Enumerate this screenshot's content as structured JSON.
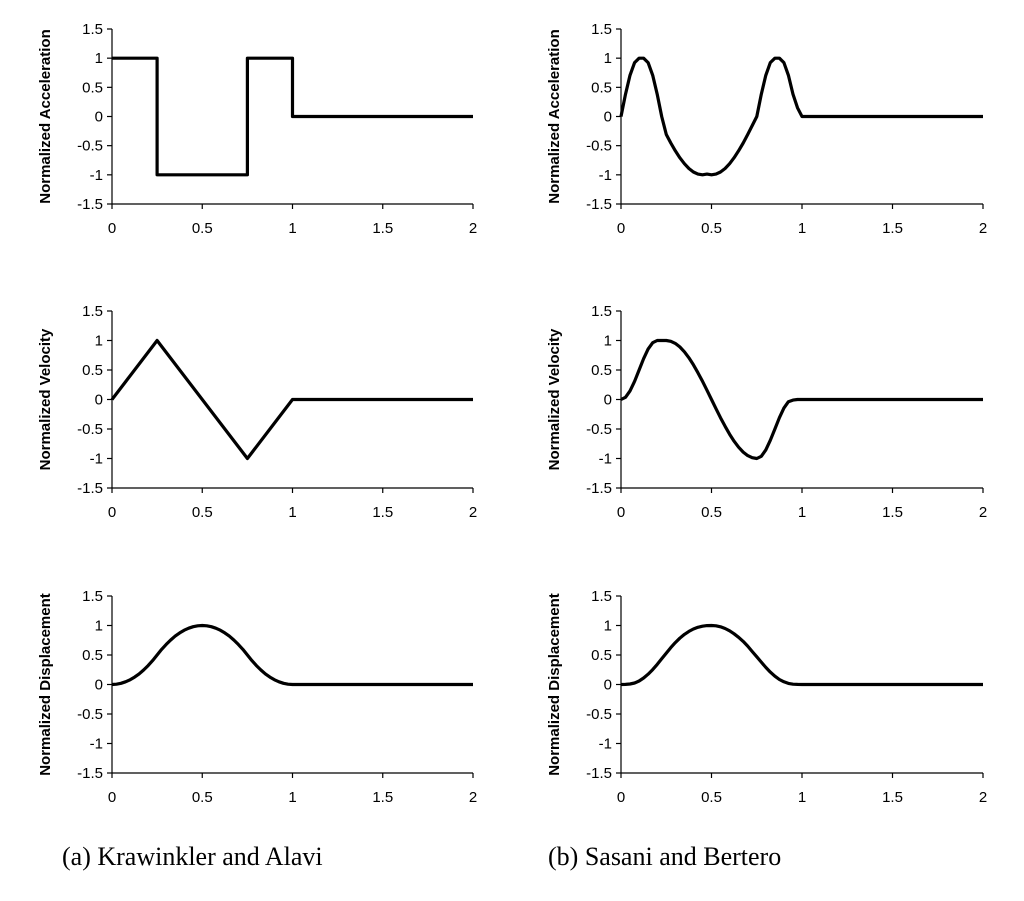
{
  "captions": {
    "left": "(a) Krawinkler and Alavi",
    "right": "(b) Sasani and Bertero"
  },
  "chart_data": [
    {
      "type": "line",
      "panel": "left-acceleration",
      "xlabel": "",
      "ylabel": "Normalized Acceleration",
      "xlim": [
        0,
        2
      ],
      "ylim": [
        -1.5,
        1.5
      ],
      "xticks": [
        0,
        0.5,
        1,
        1.5,
        2
      ],
      "xtick_labels": [
        "0",
        "0.5",
        "1",
        "1.5",
        "2"
      ],
      "yticks": [
        1.5,
        1,
        0.5,
        0,
        -0.5,
        -1,
        -1.5
      ],
      "ytick_labels": [
        "1.5",
        "1",
        "0.5",
        "0",
        "-0.5",
        "-1",
        "-1.5"
      ],
      "grid": false,
      "series": [
        {
          "color": "#000000",
          "x": [
            0,
            0.25,
            0.25,
            0.75,
            0.75,
            1,
            1,
            2
          ],
          "y": [
            1,
            1,
            -1,
            -1,
            1,
            1,
            0,
            0
          ]
        }
      ]
    },
    {
      "type": "line",
      "panel": "right-acceleration",
      "xlabel": "",
      "ylabel": "Normalized Acceleration",
      "xlim": [
        0,
        2
      ],
      "ylim": [
        -1.5,
        1.5
      ],
      "xticks": [
        0,
        0.5,
        1,
        1.5,
        2
      ],
      "xtick_labels": [
        "0",
        "0.5",
        "1",
        "1.5",
        "2"
      ],
      "yticks": [
        1.5,
        1,
        0.5,
        0,
        -0.5,
        -1,
        -1.5
      ],
      "ytick_labels": [
        "1.5",
        "1",
        "0.5",
        "0",
        "-0.5",
        "-1",
        "-1.5"
      ],
      "grid": false,
      "series": [
        {
          "color": "#000000",
          "x": [
            0,
            0.025,
            0.05,
            0.075,
            0.1,
            0.125,
            0.15,
            0.175,
            0.2,
            0.225,
            0.25,
            0.275,
            0.3,
            0.325,
            0.35,
            0.375,
            0.4,
            0.425,
            0.45,
            0.475,
            0.5,
            0.525,
            0.55,
            0.575,
            0.6,
            0.625,
            0.65,
            0.675,
            0.7,
            0.725,
            0.75,
            0.775,
            0.8,
            0.825,
            0.85,
            0.875,
            0.9,
            0.925,
            0.95,
            0.975,
            1,
            2
          ],
          "y": [
            0,
            0.383,
            0.707,
            0.924,
            1,
            1,
            0.924,
            0.707,
            0.383,
            0,
            -0.309,
            -0.454,
            -0.588,
            -0.707,
            -0.809,
            -0.891,
            -0.951,
            -0.988,
            -1,
            -0.988,
            -1,
            -0.988,
            -0.951,
            -0.891,
            -0.809,
            -0.707,
            -0.588,
            -0.454,
            -0.309,
            -0.156,
            0,
            0.383,
            0.707,
            0.924,
            1,
            1,
            0.924,
            0.707,
            0.383,
            0.15,
            0,
            0
          ]
        }
      ]
    },
    {
      "type": "line",
      "panel": "left-velocity",
      "xlabel": "",
      "ylabel": "Normalized Velocity",
      "xlim": [
        0,
        2
      ],
      "ylim": [
        -1.5,
        1.5
      ],
      "xticks": [
        0,
        0.5,
        1,
        1.5,
        2
      ],
      "xtick_labels": [
        "0",
        "0.5",
        "1",
        "1.5",
        "2"
      ],
      "yticks": [
        1.5,
        1,
        0.5,
        0,
        -0.5,
        -1,
        -1.5
      ],
      "ytick_labels": [
        "1.5",
        "1",
        "0.5",
        "0",
        "-0.5",
        "-1",
        "-1.5"
      ],
      "grid": false,
      "series": [
        {
          "color": "#000000",
          "x": [
            0,
            0.25,
            0.75,
            1,
            2
          ],
          "y": [
            0,
            1,
            -1,
            0,
            0
          ]
        }
      ]
    },
    {
      "type": "line",
      "panel": "right-velocity",
      "xlabel": "",
      "ylabel": "Normalized Velocity",
      "xlim": [
        0,
        2
      ],
      "ylim": [
        -1.5,
        1.5
      ],
      "xticks": [
        0,
        0.5,
        1,
        1.5,
        2
      ],
      "xtick_labels": [
        "0",
        "0.5",
        "1",
        "1.5",
        "2"
      ],
      "yticks": [
        1.5,
        1,
        0.5,
        0,
        -0.5,
        -1,
        -1.5
      ],
      "ytick_labels": [
        "1.5",
        "1",
        "0.5",
        "0",
        "-0.5",
        "-1",
        "-1.5"
      ],
      "grid": false,
      "series": [
        {
          "color": "#000000",
          "x": [
            0,
            0.025,
            0.05,
            0.075,
            0.1,
            0.125,
            0.15,
            0.175,
            0.2,
            0.225,
            0.25,
            0.275,
            0.3,
            0.325,
            0.35,
            0.375,
            0.4,
            0.425,
            0.45,
            0.475,
            0.5,
            0.525,
            0.55,
            0.575,
            0.6,
            0.625,
            0.65,
            0.675,
            0.7,
            0.725,
            0.75,
            0.775,
            0.8,
            0.825,
            0.85,
            0.875,
            0.9,
            0.925,
            0.95,
            0.975,
            1,
            2
          ],
          "y": [
            0,
            0.038,
            0.146,
            0.309,
            0.5,
            0.691,
            0.854,
            0.962,
            1,
            1,
            1,
            0.987,
            0.951,
            0.891,
            0.809,
            0.707,
            0.588,
            0.454,
            0.309,
            0.156,
            0,
            -0.156,
            -0.309,
            -0.454,
            -0.588,
            -0.707,
            -0.809,
            -0.891,
            -0.951,
            -0.987,
            -1,
            -0.962,
            -0.854,
            -0.691,
            -0.5,
            -0.309,
            -0.146,
            -0.038,
            -0.01,
            0,
            0,
            0
          ]
        }
      ]
    },
    {
      "type": "line",
      "panel": "left-displacement",
      "xlabel": "",
      "ylabel": "Normalized Displacement",
      "xlim": [
        0,
        2
      ],
      "ylim": [
        -1.5,
        1.5
      ],
      "xticks": [
        0,
        0.5,
        1,
        1.5,
        2
      ],
      "xtick_labels": [
        "0",
        "0.5",
        "1",
        "1.5",
        "2"
      ],
      "yticks": [
        1.5,
        1,
        0.5,
        0,
        -0.5,
        -1,
        -1.5
      ],
      "ytick_labels": [
        "1.5",
        "1",
        "0.5",
        "0",
        "-0.5",
        "-1",
        "-1.5"
      ],
      "grid": false,
      "series": [
        {
          "color": "#000000",
          "x": [
            0,
            0.025,
            0.05,
            0.075,
            0.1,
            0.125,
            0.15,
            0.175,
            0.2,
            0.225,
            0.25,
            0.275,
            0.3,
            0.325,
            0.35,
            0.375,
            0.4,
            0.425,
            0.45,
            0.475,
            0.5,
            0.525,
            0.55,
            0.575,
            0.6,
            0.625,
            0.65,
            0.675,
            0.7,
            0.725,
            0.75,
            0.775,
            0.8,
            0.825,
            0.85,
            0.875,
            0.9,
            0.925,
            0.95,
            0.975,
            1,
            2
          ],
          "y": [
            0,
            0.005,
            0.02,
            0.045,
            0.08,
            0.125,
            0.18,
            0.245,
            0.32,
            0.405,
            0.5,
            0.595,
            0.68,
            0.755,
            0.82,
            0.875,
            0.92,
            0.955,
            0.98,
            0.995,
            1,
            0.995,
            0.98,
            0.955,
            0.92,
            0.875,
            0.82,
            0.755,
            0.68,
            0.595,
            0.5,
            0.405,
            0.32,
            0.245,
            0.18,
            0.125,
            0.08,
            0.045,
            0.02,
            0.005,
            0,
            0
          ]
        }
      ]
    },
    {
      "type": "line",
      "panel": "right-displacement",
      "xlabel": "",
      "ylabel": "Normalized Displacement",
      "xlim": [
        0,
        2
      ],
      "ylim": [
        -1.5,
        1.5
      ],
      "xticks": [
        0,
        0.5,
        1,
        1.5,
        2
      ],
      "xtick_labels": [
        "0",
        "0.5",
        "1",
        "1.5",
        "2"
      ],
      "yticks": [
        1.5,
        1,
        0.5,
        0,
        -0.5,
        -1,
        -1.5
      ],
      "ytick_labels": [
        "1.5",
        "1",
        "0.5",
        "0",
        "-0.5",
        "-1",
        "-1.5"
      ],
      "grid": false,
      "series": [
        {
          "color": "#000000",
          "x": [
            0,
            0.025,
            0.05,
            0.075,
            0.1,
            0.125,
            0.15,
            0.175,
            0.2,
            0.225,
            0.25,
            0.275,
            0.3,
            0.325,
            0.35,
            0.375,
            0.4,
            0.425,
            0.45,
            0.475,
            0.5,
            0.525,
            0.55,
            0.575,
            0.6,
            0.625,
            0.65,
            0.675,
            0.7,
            0.725,
            0.75,
            0.775,
            0.8,
            0.825,
            0.85,
            0.875,
            0.9,
            0.925,
            0.95,
            0.975,
            1,
            2
          ],
          "y": [
            0,
            0.001,
            0.008,
            0.026,
            0.06,
            0.11,
            0.175,
            0.252,
            0.34,
            0.435,
            0.532,
            0.625,
            0.71,
            0.785,
            0.85,
            0.9,
            0.94,
            0.97,
            0.988,
            0.998,
            1,
            0.995,
            0.978,
            0.95,
            0.91,
            0.86,
            0.8,
            0.73,
            0.65,
            0.56,
            0.47,
            0.38,
            0.29,
            0.21,
            0.14,
            0.085,
            0.045,
            0.018,
            0.005,
            0.001,
            0,
            0
          ]
        }
      ]
    }
  ]
}
